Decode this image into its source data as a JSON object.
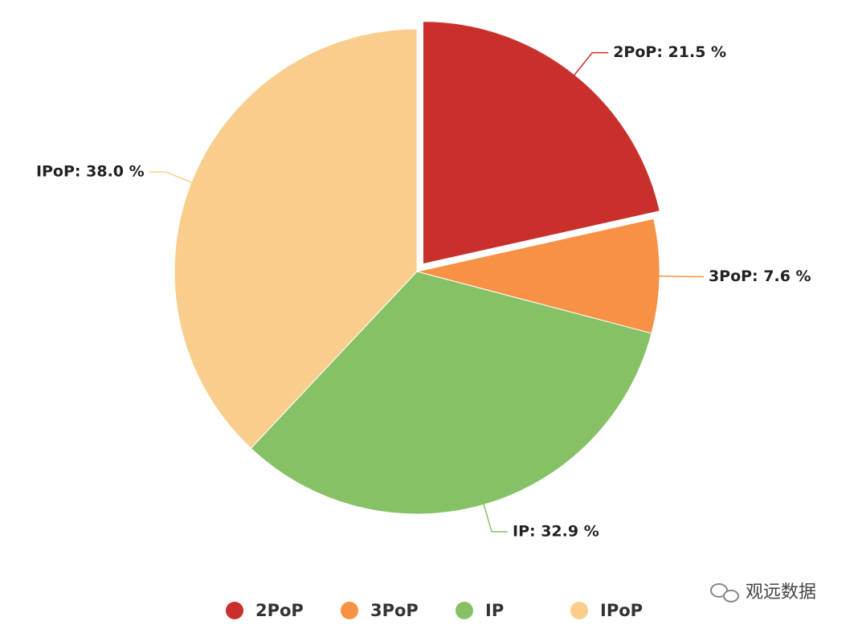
{
  "chart_data": {
    "type": "pie",
    "categories": [
      "2PoP",
      "3PoP",
      "IP",
      "IPoP"
    ],
    "values": [
      21.5,
      7.6,
      32.9,
      38.0
    ],
    "value_labels": [
      "2PoP: 21.5 %",
      "3PoP: 7.6 %",
      "IP: 32.9 %",
      "IPoP: 38.0 %"
    ],
    "colors": [
      "#c9302c",
      "#f79145",
      "#86c166",
      "#f9ce8c"
    ],
    "exploded": [
      true,
      false,
      false,
      false
    ],
    "legend": "bottom"
  },
  "watermark": "观远数据"
}
